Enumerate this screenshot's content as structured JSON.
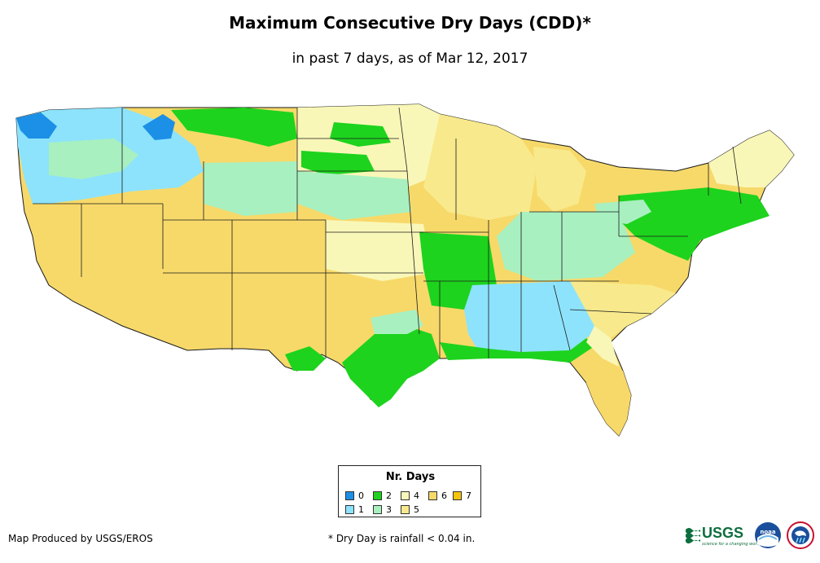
{
  "title": "Maximum Consecutive Dry Days (CDD)*",
  "subtitle": "in past 7 days, as of Mar 12, 2017",
  "legend": {
    "title": "Nr. Days",
    "items": [
      {
        "label": "0",
        "color": "#1c8fe6"
      },
      {
        "label": "1",
        "color": "#8de3fc"
      },
      {
        "label": "2",
        "color": "#1dd31d"
      },
      {
        "label": "3",
        "color": "#a8f0c0"
      },
      {
        "label": "4",
        "color": "#f9f7b8"
      },
      {
        "label": "5",
        "color": "#f8ea8c"
      },
      {
        "label": "6",
        "color": "#f7d96a"
      },
      {
        "label": "7",
        "color": "#f6c40e"
      }
    ]
  },
  "footer": {
    "credit": "Map Produced by USGS/EROS",
    "note": "* Dry Day is rainfall < 0.04 in."
  },
  "logos": {
    "usgs_text": "USGS",
    "usgs_tagline": "science for a changing world",
    "noaa_text": "noaa"
  },
  "colors": {
    "state_border": "#1a1a1a"
  }
}
